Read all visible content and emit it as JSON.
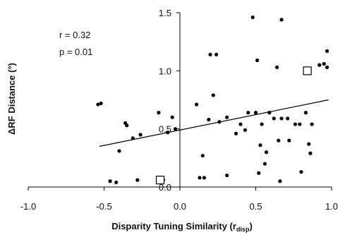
{
  "chart_data": {
    "type": "scatter",
    "xlabel_main": "Disparity Tuning Similarity (r",
    "xlabel_sub": "disp",
    "xlabel_close": ")",
    "ylabel": "ΔRF Distance (°)",
    "xlim": [
      -1.0,
      1.0
    ],
    "ylim": [
      0.0,
      1.5
    ],
    "x_ticks": [
      -1.0,
      -0.5,
      0.0,
      0.5,
      1.0
    ],
    "x_tick_labels": [
      "-1.0",
      "-0.5",
      "0.0",
      "0.5",
      "1.0"
    ],
    "y_ticks": [
      0.0,
      0.5,
      1.0,
      1.5
    ],
    "y_tick_labels": [
      "0.0",
      "0.5",
      "1.0",
      "1.5"
    ],
    "annotations": [
      "r = 0.32",
      "p = 0.01"
    ],
    "regression": {
      "x": [
        -0.53,
        0.98
      ],
      "y": [
        0.35,
        0.75
      ]
    },
    "points": [
      {
        "x": -0.54,
        "y": 0.71
      },
      {
        "x": -0.52,
        "y": 0.72
      },
      {
        "x": -0.46,
        "y": 0.05
      },
      {
        "x": -0.42,
        "y": 0.04
      },
      {
        "x": -0.4,
        "y": 0.31
      },
      {
        "x": -0.36,
        "y": 0.55
      },
      {
        "x": -0.35,
        "y": 0.53
      },
      {
        "x": -0.31,
        "y": 0.42
      },
      {
        "x": -0.28,
        "y": 0.06
      },
      {
        "x": -0.26,
        "y": 0.45
      },
      {
        "x": -0.14,
        "y": 0.64
      },
      {
        "x": -0.11,
        "y": 0.06
      },
      {
        "x": -0.08,
        "y": 0.47
      },
      {
        "x": -0.05,
        "y": 0.6
      },
      {
        "x": -0.03,
        "y": 0.5
      },
      {
        "x": 0.11,
        "y": 0.71
      },
      {
        "x": 0.13,
        "y": 0.08
      },
      {
        "x": 0.15,
        "y": 0.27
      },
      {
        "x": 0.16,
        "y": 0.08
      },
      {
        "x": 0.19,
        "y": 0.58
      },
      {
        "x": 0.2,
        "y": 1.14
      },
      {
        "x": 0.22,
        "y": 0.79
      },
      {
        "x": 0.24,
        "y": 1.14
      },
      {
        "x": 0.26,
        "y": 0.56
      },
      {
        "x": 0.31,
        "y": 0.1
      },
      {
        "x": 0.31,
        "y": 0.6
      },
      {
        "x": 0.37,
        "y": 0.46
      },
      {
        "x": 0.4,
        "y": 0.54
      },
      {
        "x": 0.43,
        "y": 0.49
      },
      {
        "x": 0.45,
        "y": 0.64
      },
      {
        "x": 0.48,
        "y": 1.46
      },
      {
        "x": 0.5,
        "y": 0.64
      },
      {
        "x": 0.51,
        "y": 1.09
      },
      {
        "x": 0.52,
        "y": 0.12
      },
      {
        "x": 0.53,
        "y": 0.36
      },
      {
        "x": 0.54,
        "y": 0.54
      },
      {
        "x": 0.56,
        "y": 0.2
      },
      {
        "x": 0.57,
        "y": 0.3
      },
      {
        "x": 0.59,
        "y": 0.64
      },
      {
        "x": 0.62,
        "y": 0.59
      },
      {
        "x": 0.64,
        "y": 1.03
      },
      {
        "x": 0.65,
        "y": 0.4
      },
      {
        "x": 0.66,
        "y": 0.05
      },
      {
        "x": 0.67,
        "y": 1.44
      },
      {
        "x": 0.67,
        "y": 0.59
      },
      {
        "x": 0.71,
        "y": 0.59
      },
      {
        "x": 0.72,
        "y": 0.4
      },
      {
        "x": 0.76,
        "y": 0.54
      },
      {
        "x": 0.79,
        "y": 0.54
      },
      {
        "x": 0.8,
        "y": 0.13
      },
      {
        "x": 0.83,
        "y": 0.64
      },
      {
        "x": 0.85,
        "y": 0.37
      },
      {
        "x": 0.86,
        "y": 0.29
      },
      {
        "x": 0.87,
        "y": 0.54
      },
      {
        "x": 0.92,
        "y": 1.05
      },
      {
        "x": 0.95,
        "y": 1.06
      },
      {
        "x": 0.97,
        "y": 1.03
      },
      {
        "x": 0.97,
        "y": 1.17
      }
    ],
    "highlighted_points": [
      {
        "x": -0.13,
        "y": 0.06
      },
      {
        "x": 0.84,
        "y": 1.0
      }
    ]
  }
}
